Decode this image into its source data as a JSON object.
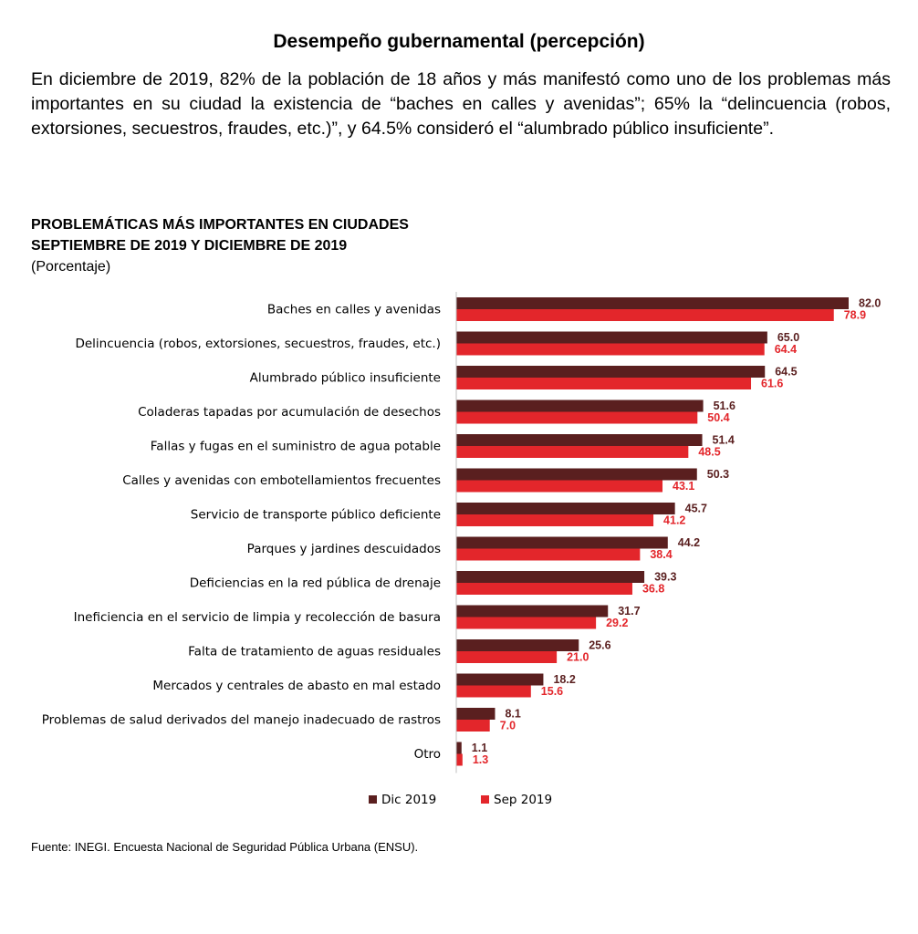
{
  "heading": "Desempeño gubernamental (percepción)",
  "intro": "En diciembre de 2019, 82% de la población de 18 años y más manifestó como uno de los problemas más importantes en su ciudad la existencia de “baches en calles y avenidas”; 65% la “delincuencia (robos, extorsiones, secuestros, fraudes, etc.)”, y 64.5% consideró el “alumbrado público insuficiente”.",
  "chart_data": {
    "type": "bar",
    "orientation": "horizontal",
    "title": "PROBLEMÁTICAS MÁS IMPORTANTES EN CIUDADES",
    "subtitle": "SEPTIEMBRE DE 2019 Y DICIEMBRE DE 2019",
    "unit": "(Porcentaje)",
    "categories": [
      "Baches en calles y avenidas",
      "Delincuencia (robos, extorsiones, secuestros, fraudes, etc.)",
      "Alumbrado público insuficiente",
      "Coladeras tapadas por acumulación de desechos",
      "Fallas y fugas en el suministro de agua potable",
      "Calles y avenidas con embotellamientos frecuentes",
      "Servicio de transporte público deficiente",
      "Parques y jardines descuidados",
      "Deficiencias en la red pública de drenaje",
      "Ineficiencia en el servicio de limpia y recolección de basura",
      "Falta de tratamiento de aguas residuales",
      "Mercados y centrales de abasto en mal estado",
      "Problemas de salud derivados del manejo inadecuado de rastros",
      "Otro"
    ],
    "series": [
      {
        "name": "Dic 2019",
        "color": "#5a1f1f",
        "values": [
          82.0,
          65.0,
          64.5,
          51.6,
          51.4,
          50.3,
          45.7,
          44.2,
          39.3,
          31.7,
          25.6,
          18.2,
          8.1,
          1.1
        ],
        "labels": [
          "82.0",
          "65.0",
          "64.5",
          "51.6",
          "51.4",
          "50.3",
          "45.7",
          "44.2",
          "39.3",
          "31.7",
          "25.6",
          "18.2",
          "8.1",
          "1.1"
        ]
      },
      {
        "name": "Sep 2019",
        "color": "#e3262b",
        "values": [
          78.9,
          64.4,
          61.6,
          50.4,
          48.5,
          43.1,
          41.2,
          38.4,
          36.8,
          29.2,
          21.0,
          15.6,
          7.0,
          1.3
        ],
        "labels": [
          "78.9",
          "64.4",
          "61.6",
          "50.4",
          "48.5",
          "43.1",
          "41.2",
          "38.4",
          "36.8",
          "29.2",
          "21.0",
          "15.6",
          "7.0",
          "1.3"
        ]
      }
    ],
    "legend_position": "bottom",
    "grid": false,
    "xlim": [
      0,
      82
    ]
  },
  "source": "Fuente: INEGI. Encuesta Nacional de Seguridad Pública Urbana (ENSU)."
}
